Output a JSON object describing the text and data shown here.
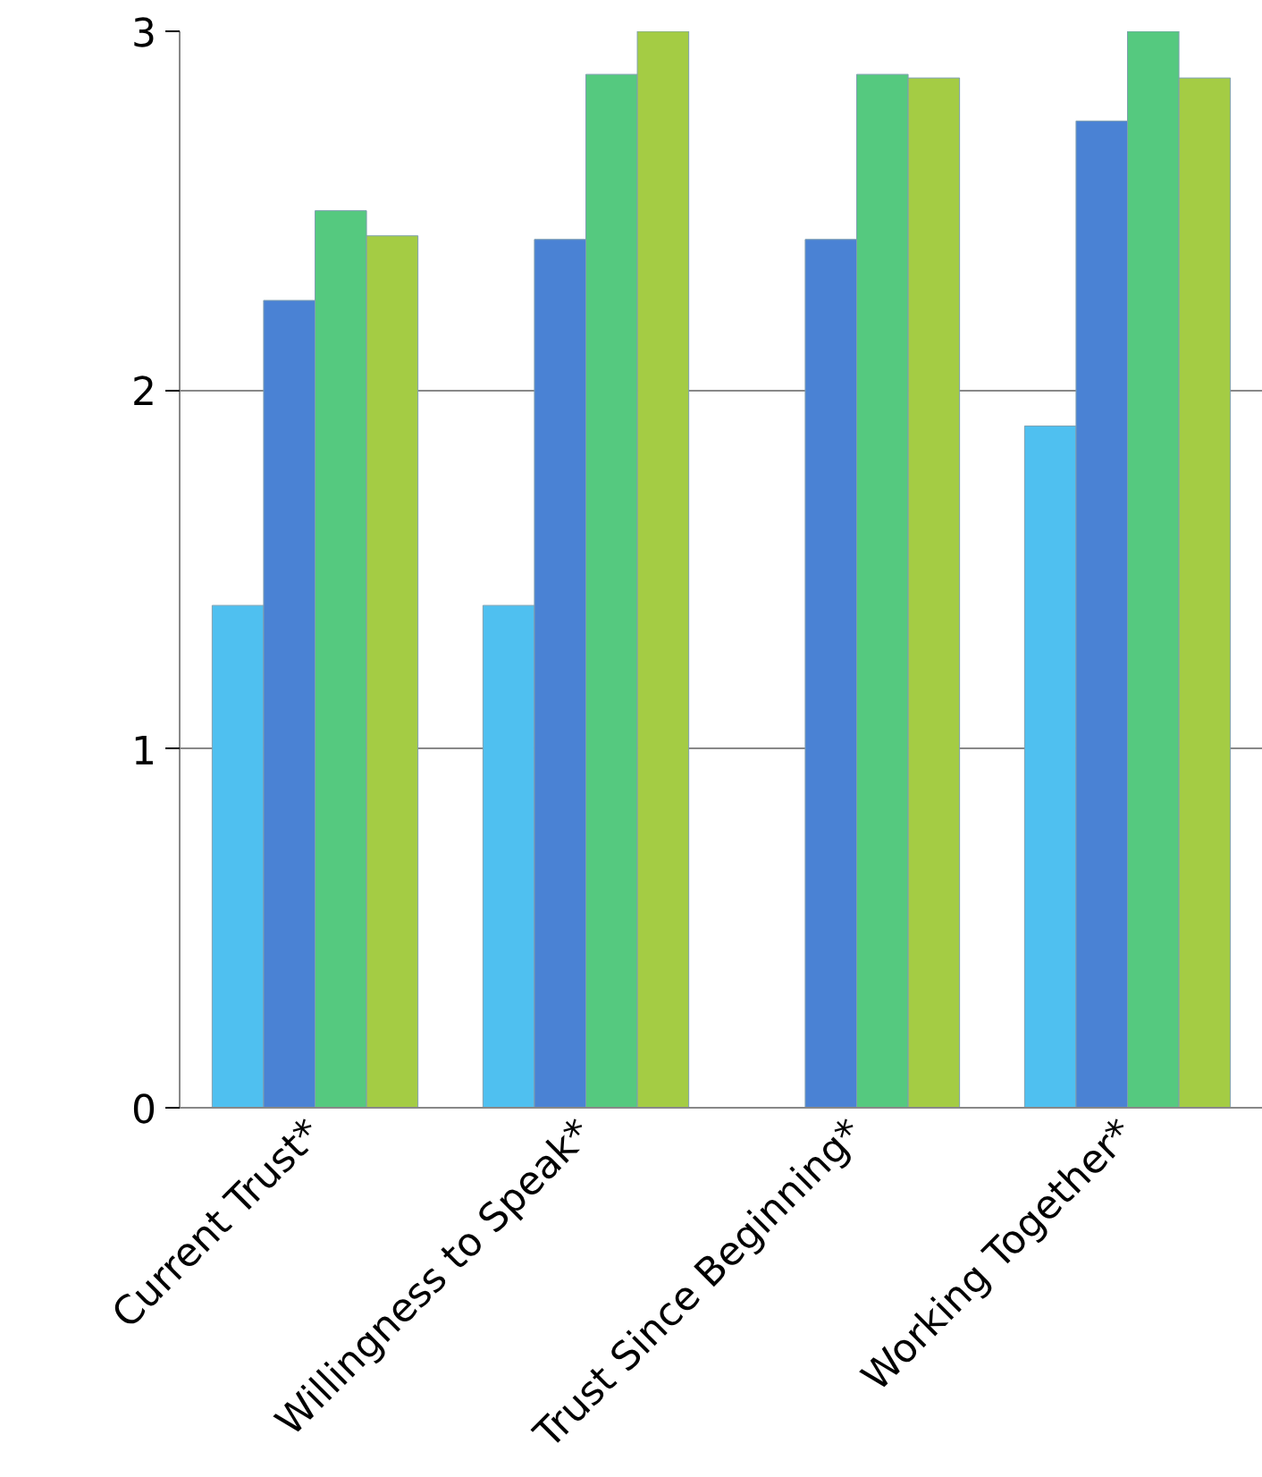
{
  "chart_data": {
    "type": "bar",
    "categories": [
      "Current Trust*",
      "Willingness to Speak*",
      "Trust Since Beginning*",
      "Working Together*"
    ],
    "series": [
      {
        "color": "#4fc0f0",
        "values": [
          1.4,
          1.4,
          null,
          1.9
        ]
      },
      {
        "color": "#4a82d4",
        "values": [
          2.25,
          2.42,
          2.42,
          2.75
        ]
      },
      {
        "color": "#55c97f",
        "values": [
          2.5,
          2.88,
          2.88,
          3.0
        ]
      },
      {
        "color": "#a4cc44",
        "values": [
          2.43,
          3.0,
          2.87,
          2.87
        ]
      }
    ],
    "ylim": [
      0,
      3
    ],
    "yticks": [
      0,
      1,
      2,
      3
    ],
    "grid": "y"
  }
}
